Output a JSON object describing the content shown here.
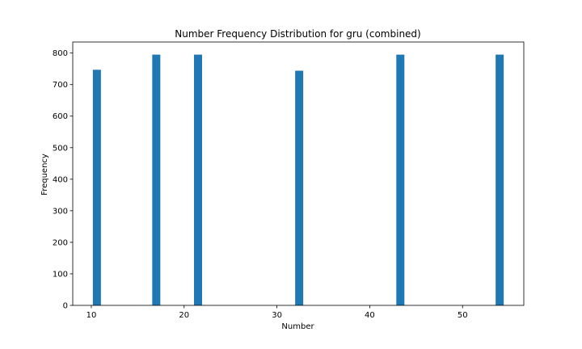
{
  "chart_data": {
    "type": "bar",
    "title": "Number Frequency Distribution for gru (combined)",
    "xlabel": "Number",
    "ylabel": "Frequency",
    "xlim": [
      8.0,
      56.6
    ],
    "ylim": [
      0,
      835
    ],
    "x_ticks": [
      10,
      20,
      30,
      40,
      50
    ],
    "y_ticks": [
      0,
      100,
      200,
      300,
      400,
      500,
      600,
      700,
      800
    ],
    "bar_width": 0.87,
    "bars": [
      {
        "x": 10.6,
        "value": 747
      },
      {
        "x": 17.0,
        "value": 795
      },
      {
        "x": 21.5,
        "value": 795
      },
      {
        "x": 32.4,
        "value": 744
      },
      {
        "x": 43.3,
        "value": 795
      },
      {
        "x": 54.0,
        "value": 795
      }
    ],
    "bar_color": "#1f77b4",
    "grid": false,
    "legend": "none"
  }
}
